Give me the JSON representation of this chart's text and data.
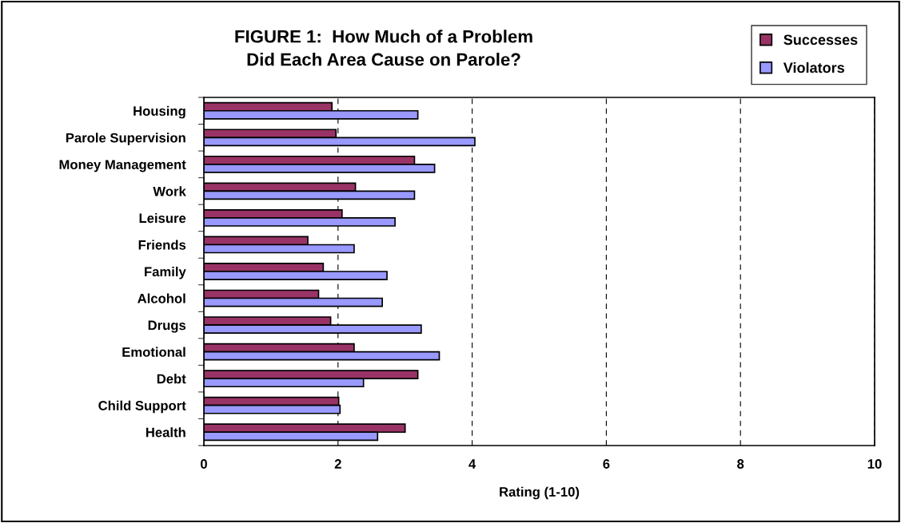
{
  "chart_data": {
    "type": "bar",
    "orientation": "horizontal",
    "title": "FIGURE 1:  How Much of a Problem\nDid Each Area Cause on Parole?",
    "xlabel": "Rating (1-10)",
    "categories": [
      "Housing",
      "Parole Supervision",
      "Money Management",
      "Work",
      "Leisure",
      "Friends",
      "Family",
      "Alcohol",
      "Drugs",
      "Emotional",
      "Debt",
      "Child Support",
      "Health"
    ],
    "series": [
      {
        "name": "Successes",
        "color": "#993366",
        "values": [
          1.91,
          1.97,
          3.14,
          2.26,
          2.06,
          1.55,
          1.78,
          1.71,
          1.89,
          2.24,
          3.19,
          2.01,
          3.0
        ]
      },
      {
        "name": "Violators",
        "color": "#9999ff",
        "values": [
          3.19,
          4.04,
          3.44,
          3.14,
          2.85,
          2.24,
          2.73,
          2.66,
          3.24,
          3.51,
          2.38,
          2.03,
          2.59
        ]
      }
    ],
    "xlim": [
      0,
      10
    ],
    "xticks": [
      0,
      2,
      4,
      6,
      8,
      10
    ],
    "grid": "x",
    "legend": "top right"
  }
}
